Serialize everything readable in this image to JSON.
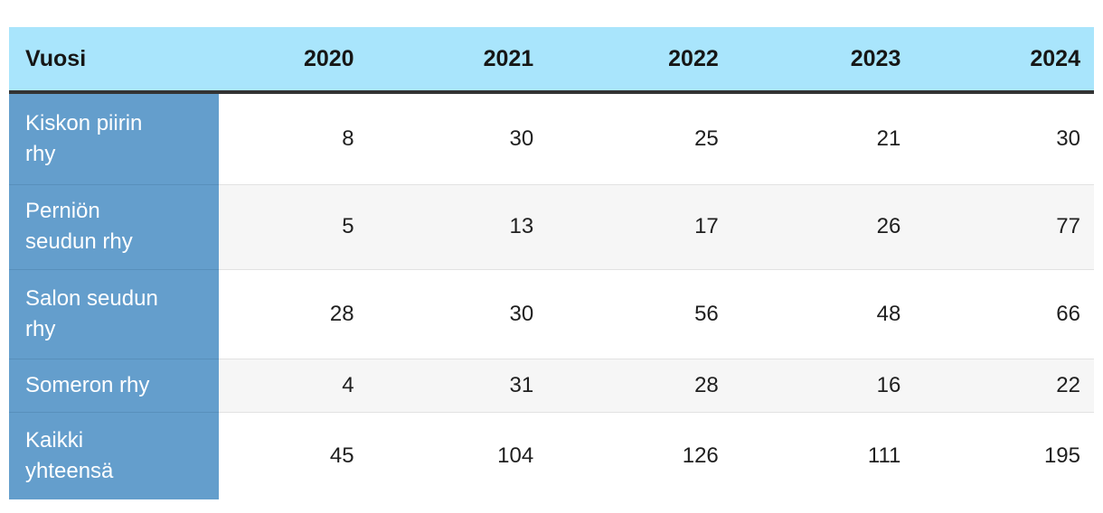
{
  "chart_data": {
    "type": "table",
    "header": {
      "label": "Vuosi",
      "years": [
        "2020",
        "2021",
        "2022",
        "2023",
        "2024"
      ]
    },
    "rows": [
      {
        "label": "Kiskon piirin rhy",
        "values": [
          "8",
          "30",
          "25",
          "21",
          "30"
        ]
      },
      {
        "label": "Perniön seudun rhy",
        "values": [
          "5",
          "13",
          "17",
          "26",
          "77"
        ]
      },
      {
        "label": "Salon seudun rhy",
        "values": [
          "28",
          "30",
          "56",
          "48",
          "66"
        ]
      },
      {
        "label": "Someron rhy",
        "values": [
          "4",
          "31",
          "28",
          "16",
          "22"
        ]
      },
      {
        "label": "Kaikki yhteensä",
        "values": [
          "45",
          "104",
          "126",
          "111",
          "195"
        ]
      }
    ]
  },
  "colors": {
    "header_bg": "#a9e5fc",
    "row_label_bg": "#649ecc",
    "header_border": "#333333",
    "stripe_bg": "#f6f6f6",
    "divider": "#e2e2e2",
    "label_divider": "#5890bb",
    "text": "#1f1f1f",
    "label_text": "#ffffff"
  }
}
